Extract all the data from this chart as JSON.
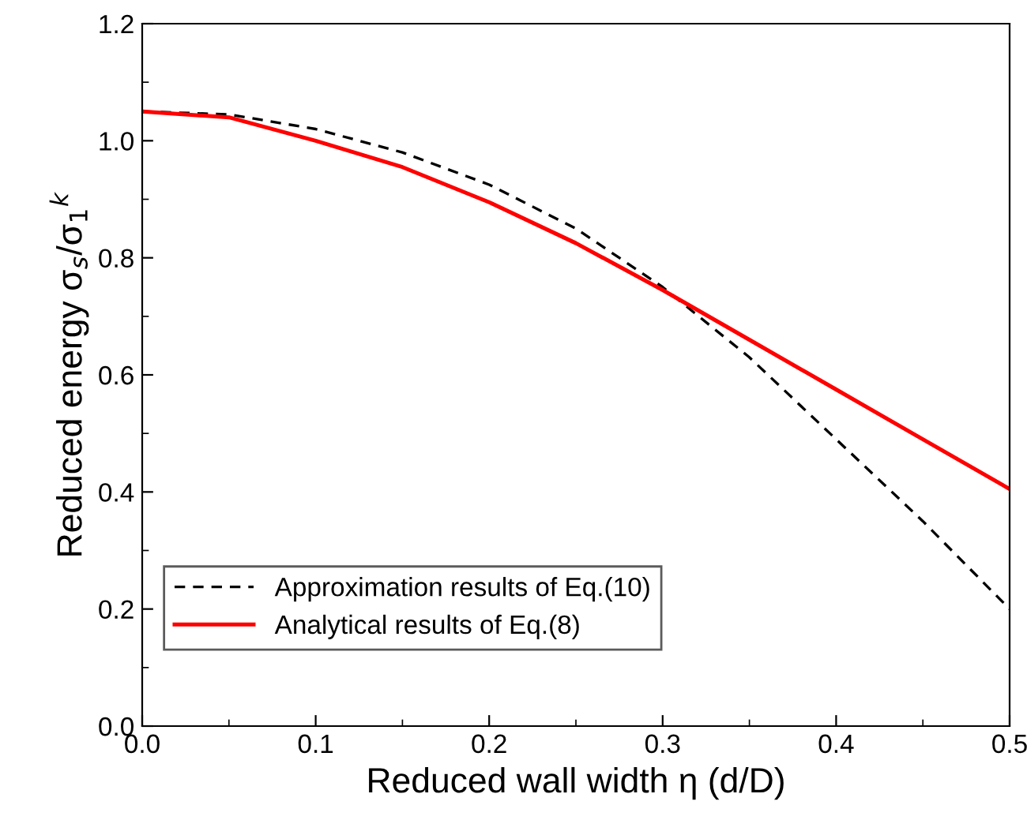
{
  "chart_data": {
    "type": "line",
    "xlabel": "Reduced wall width η (d/D)",
    "ylabel": "Reduced energy σ$_{s}$/σ$_{1}$$^{k}$",
    "x": [
      0,
      0.05,
      0.1,
      0.15,
      0.2,
      0.25,
      0.3,
      0.35,
      0.4,
      0.45,
      0.5
    ],
    "series": [
      {
        "name": "Approximation results of Eq.(10)",
        "color": "#000000",
        "line_style": "dashed",
        "values": [
          1.05,
          1.045,
          1.02,
          0.98,
          0.925,
          0.85,
          0.75,
          0.63,
          0.49,
          0.35,
          0.2
        ]
      },
      {
        "name": "Analytical results of Eq.(8)",
        "color": "#ff0000",
        "line_style": "solid",
        "values": [
          1.05,
          1.04,
          1.0,
          0.955,
          0.895,
          0.825,
          0.745,
          0.66,
          0.575,
          0.49,
          0.405
        ]
      }
    ],
    "xlim": [
      0,
      0.5
    ],
    "ylim": [
      0,
      1.2
    ],
    "xticks": [
      {
        "value": 0,
        "label": "0.0"
      },
      0.1,
      0.2,
      0.3,
      0.4,
      0.5
    ],
    "yticks": [
      {
        "value": 0,
        "label": "0.0"
      },
      0.2,
      0.4,
      0.6,
      0.8,
      {
        "value": 1,
        "label": "1.0"
      },
      1.2
    ],
    "grid": false,
    "legend": "bottom left"
  }
}
